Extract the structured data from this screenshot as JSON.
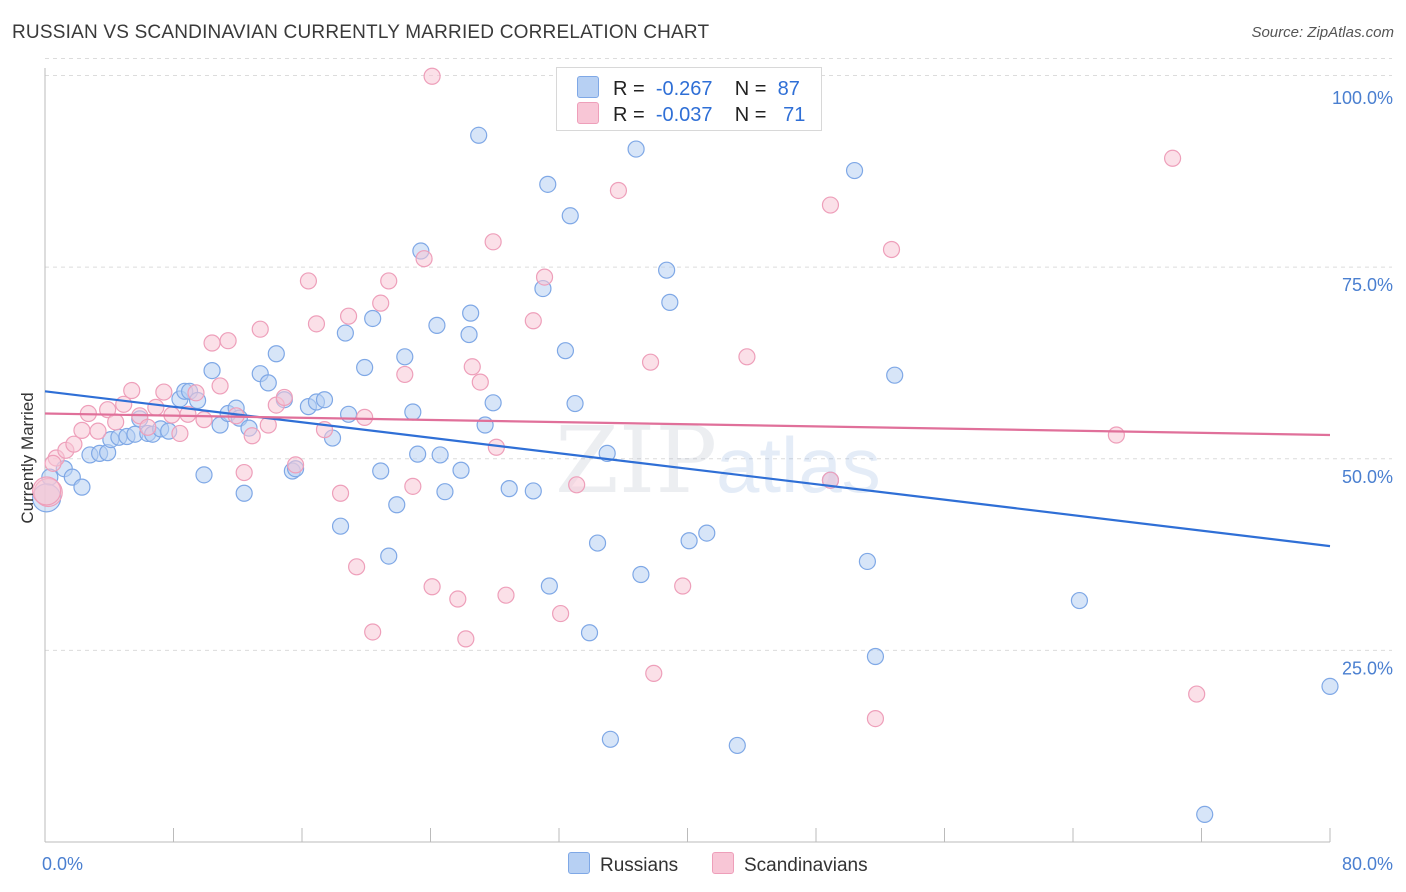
{
  "title": "RUSSIAN VS SCANDINAVIAN CURRENTLY MARRIED CORRELATION CHART",
  "source": "Source: ZipAtlas.com",
  "legend": {
    "rows": [
      {
        "r_label": "R =",
        "r_value": "-0.267",
        "n_label": "N =",
        "n_value": "87"
      },
      {
        "r_label": "R =",
        "r_value": "-0.037",
        "n_label": "N =",
        "n_value": "71"
      }
    ]
  },
  "bottom_legend": {
    "russians": "Russians",
    "scandinavians": "Scandinavians"
  },
  "watermark": {
    "zip": "ZIP",
    "atlas": "atlas"
  },
  "colors": {
    "russians_fill": "#b7d0f3",
    "russians_stroke": "#7fa8e6",
    "russians_line": "#2f6fd6",
    "scandinavians_fill": "#f8c6d6",
    "scandinavians_stroke": "#ee9fba",
    "scandinavians_line": "#e0709a",
    "grid": "#dcdcdc",
    "tick_text": "#4a7fd0"
  },
  "chart_data": {
    "type": "scatter",
    "title": "RUSSIAN VS SCANDINAVIAN CURRENTLY MARRIED CORRELATION CHART",
    "xlabel": "",
    "ylabel": "Currently Married",
    "xlim": [
      0,
      80
    ],
    "ylim": [
      0,
      103
    ],
    "x_tick_labels": [
      "0.0%",
      "80.0%"
    ],
    "y_ticks": [
      25,
      50,
      75,
      100
    ],
    "y_tick_labels": [
      "25.0%",
      "50.0%",
      "75.0%",
      "100.0%"
    ],
    "series": [
      {
        "name": "Russians",
        "r": -0.267,
        "n": 87,
        "trend": {
          "x": [
            0,
            80
          ],
          "y": [
            58.8,
            38.6
          ]
        },
        "points": [
          [
            0.3,
            47.6
          ],
          [
            1.2,
            48.7
          ],
          [
            1.7,
            47.6
          ],
          [
            2.3,
            46.3
          ],
          [
            2.8,
            50.5
          ],
          [
            3.4,
            50.7
          ],
          [
            3.9,
            50.8
          ],
          [
            4.1,
            52.5
          ],
          [
            4.6,
            52.8
          ],
          [
            5.1,
            52.9
          ],
          [
            5.6,
            53.2
          ],
          [
            5.9,
            55.2
          ],
          [
            6.4,
            53.3
          ],
          [
            6.7,
            53.2
          ],
          [
            7.2,
            53.9
          ],
          [
            7.7,
            53.6
          ],
          [
            8.4,
            57.8
          ],
          [
            8.7,
            58.8
          ],
          [
            9.0,
            58.8
          ],
          [
            9.5,
            57.6
          ],
          [
            9.9,
            47.9
          ],
          [
            10.4,
            61.5
          ],
          [
            10.9,
            54.4
          ],
          [
            11.4,
            55.9
          ],
          [
            11.9,
            56.6
          ],
          [
            12.1,
            55.3
          ],
          [
            12.4,
            45.5
          ],
          [
            12.7,
            54.0
          ],
          [
            13.4,
            61.1
          ],
          [
            13.9,
            59.9
          ],
          [
            14.4,
            63.7
          ],
          [
            14.9,
            57.7
          ],
          [
            15.4,
            48.4
          ],
          [
            15.6,
            48.7
          ],
          [
            16.4,
            56.8
          ],
          [
            16.9,
            57.4
          ],
          [
            17.4,
            57.7
          ],
          [
            17.9,
            52.7
          ],
          [
            18.4,
            41.2
          ],
          [
            18.7,
            66.4
          ],
          [
            18.9,
            55.8
          ],
          [
            19.9,
            61.9
          ],
          [
            20.4,
            68.3
          ],
          [
            20.9,
            48.4
          ],
          [
            21.4,
            37.3
          ],
          [
            21.9,
            44.0
          ],
          [
            22.4,
            63.3
          ],
          [
            22.9,
            56.1
          ],
          [
            23.2,
            50.6
          ],
          [
            23.4,
            77.1
          ],
          [
            24.4,
            67.4
          ],
          [
            24.6,
            50.5
          ],
          [
            24.9,
            45.7
          ],
          [
            25.9,
            48.5
          ],
          [
            26.4,
            66.2
          ],
          [
            26.5,
            69.0
          ],
          [
            27.0,
            92.2
          ],
          [
            27.4,
            54.4
          ],
          [
            27.9,
            57.3
          ],
          [
            28.9,
            46.1
          ],
          [
            30.4,
            45.8
          ],
          [
            31.0,
            72.2
          ],
          [
            31.3,
            85.8
          ],
          [
            31.4,
            33.4
          ],
          [
            32.4,
            64.1
          ],
          [
            32.7,
            81.7
          ],
          [
            33.0,
            57.2
          ],
          [
            33.9,
            27.3
          ],
          [
            34.4,
            39.0
          ],
          [
            35.0,
            50.7
          ],
          [
            35.2,
            13.4
          ],
          [
            36.8,
            90.4
          ],
          [
            37.1,
            34.9
          ],
          [
            38.7,
            74.6
          ],
          [
            38.9,
            70.4
          ],
          [
            40.1,
            39.3
          ],
          [
            41.2,
            40.3
          ],
          [
            43.1,
            12.6
          ],
          [
            48.9,
            47.2
          ],
          [
            50.4,
            87.6
          ],
          [
            51.2,
            36.6
          ],
          [
            51.7,
            24.2
          ],
          [
            52.9,
            60.9
          ],
          [
            64.4,
            31.5
          ],
          [
            72.2,
            3.6
          ],
          [
            80.0,
            20.3
          ],
          [
            0.1,
            44.9
          ]
        ]
      },
      {
        "name": "Scandinavians",
        "r": -0.037,
        "n": 71,
        "trend": {
          "x": [
            0,
            80
          ],
          "y": [
            55.9,
            53.1
          ]
        },
        "points": [
          [
            0.2,
            45.6
          ],
          [
            0.7,
            50.1
          ],
          [
            1.3,
            51.1
          ],
          [
            1.8,
            51.9
          ],
          [
            2.3,
            53.7
          ],
          [
            2.7,
            55.9
          ],
          [
            3.3,
            53.6
          ],
          [
            3.9,
            56.4
          ],
          [
            4.4,
            54.8
          ],
          [
            4.9,
            57.1
          ],
          [
            5.4,
            58.9
          ],
          [
            5.9,
            55.6
          ],
          [
            6.4,
            54.1
          ],
          [
            6.9,
            56.7
          ],
          [
            7.4,
            58.7
          ],
          [
            7.9,
            55.7
          ],
          [
            8.4,
            53.3
          ],
          [
            8.9,
            55.8
          ],
          [
            9.4,
            58.6
          ],
          [
            9.9,
            55.1
          ],
          [
            10.4,
            65.1
          ],
          [
            10.9,
            59.5
          ],
          [
            11.4,
            65.4
          ],
          [
            11.9,
            55.6
          ],
          [
            12.4,
            48.2
          ],
          [
            12.9,
            53.0
          ],
          [
            13.4,
            66.9
          ],
          [
            13.9,
            54.4
          ],
          [
            14.4,
            57.0
          ],
          [
            14.9,
            58.0
          ],
          [
            15.6,
            49.2
          ],
          [
            16.4,
            73.2
          ],
          [
            16.9,
            67.6
          ],
          [
            17.4,
            53.8
          ],
          [
            18.4,
            45.5
          ],
          [
            18.9,
            68.6
          ],
          [
            19.4,
            35.9
          ],
          [
            19.9,
            55.4
          ],
          [
            20.4,
            27.4
          ],
          [
            20.9,
            70.3
          ],
          [
            21.4,
            73.2
          ],
          [
            22.4,
            61.0
          ],
          [
            22.9,
            46.4
          ],
          [
            23.6,
            76.1
          ],
          [
            24.1,
            33.3
          ],
          [
            24.1,
            99.9
          ],
          [
            25.7,
            31.7
          ],
          [
            26.2,
            26.5
          ],
          [
            26.6,
            62.0
          ],
          [
            27.1,
            60.0
          ],
          [
            27.9,
            78.3
          ],
          [
            28.1,
            51.5
          ],
          [
            28.7,
            32.2
          ],
          [
            30.4,
            68.0
          ],
          [
            31.1,
            73.7
          ],
          [
            32.1,
            29.8
          ],
          [
            33.1,
            46.6
          ],
          [
            35.7,
            85.0
          ],
          [
            37.7,
            62.6
          ],
          [
            37.9,
            22.0
          ],
          [
            39.7,
            33.4
          ],
          [
            43.7,
            63.3
          ],
          [
            48.9,
            47.2
          ],
          [
            48.9,
            83.1
          ],
          [
            51.7,
            16.1
          ],
          [
            52.7,
            77.3
          ],
          [
            66.7,
            53.1
          ],
          [
            70.2,
            89.2
          ],
          [
            71.7,
            19.3
          ],
          [
            0.1,
            45.8
          ],
          [
            0.5,
            49.4
          ]
        ]
      }
    ]
  }
}
